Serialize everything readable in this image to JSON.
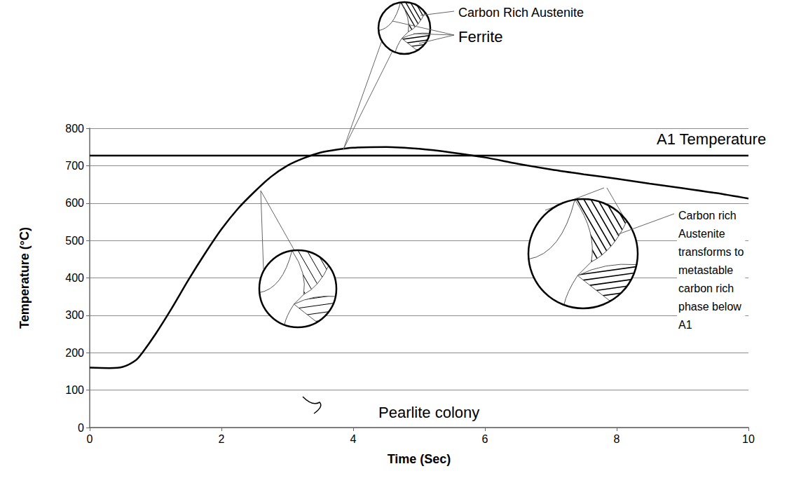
{
  "chart_data": {
    "type": "line",
    "x_label": "Time (Sec)",
    "y_label": "Temperature (°C)",
    "xlim": [
      0,
      10
    ],
    "xticks": [
      0,
      2,
      4,
      6,
      8,
      10
    ],
    "ylim": [
      0,
      800
    ],
    "yticks": [
      0,
      100,
      200,
      300,
      400,
      500,
      600,
      700,
      800
    ],
    "grid": true,
    "series": [
      {
        "color": "#000000",
        "line_style": "solid",
        "x": [
          0,
          0.3,
          0.5,
          0.7,
          0.8,
          1,
          1.25,
          1.5,
          1.75,
          2,
          2.25,
          2.5,
          2.75,
          3,
          3.25,
          3.5,
          3.75,
          4,
          4.5,
          5,
          5.5,
          6,
          6.5,
          7,
          7.5,
          8,
          8.5,
          9,
          9.5,
          10
        ],
        "values": [
          160,
          159,
          162,
          180,
          200,
          250,
          320,
          395,
          465,
          530,
          585,
          630,
          670,
          700,
          720,
          735,
          743,
          748,
          750,
          745,
          735,
          722,
          705,
          690,
          677,
          665,
          652,
          640,
          627,
          612
        ]
      },
      {
        "name": "A1 Temperature",
        "color": "#000000",
        "line_style": "solid",
        "x": [
          0,
          10
        ],
        "values": [
          727,
          727
        ]
      }
    ],
    "annotations": [
      "Carbon Rich Austenite",
      "Ferrite",
      "Pearlite colony",
      "Carbon rich Austenite transforms to metastable carbon rich phase below A1"
    ]
  }
}
